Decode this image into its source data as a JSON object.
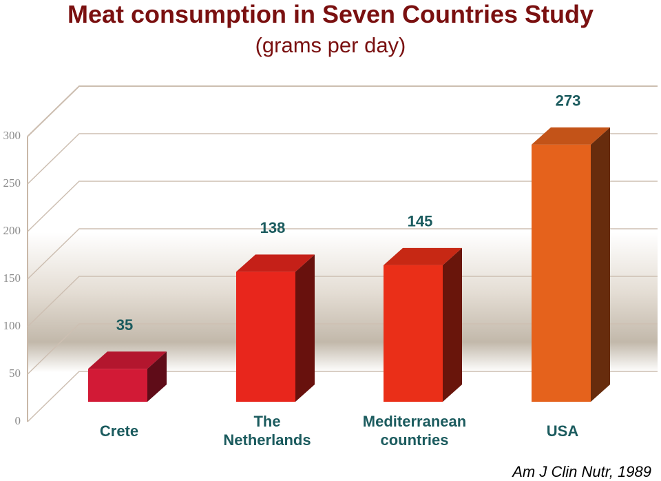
{
  "chart_data": {
    "type": "bar3d",
    "title": "Meat consumption in Seven Countries Study",
    "subtitle": "(grams per day)",
    "source": "Am J Clin Nutr, 1989",
    "categories": [
      "Crete",
      "The Netherlands",
      "Mediterranean countries",
      "USA"
    ],
    "values": [
      35,
      138,
      145,
      273
    ],
    "colors": [
      "#d21a36",
      "#e8261c",
      "#ea2f18",
      "#e5621c"
    ],
    "ylim": [
      0,
      300
    ],
    "yticks": [
      0,
      50,
      100,
      150,
      200,
      250,
      300
    ],
    "grid": true
  }
}
